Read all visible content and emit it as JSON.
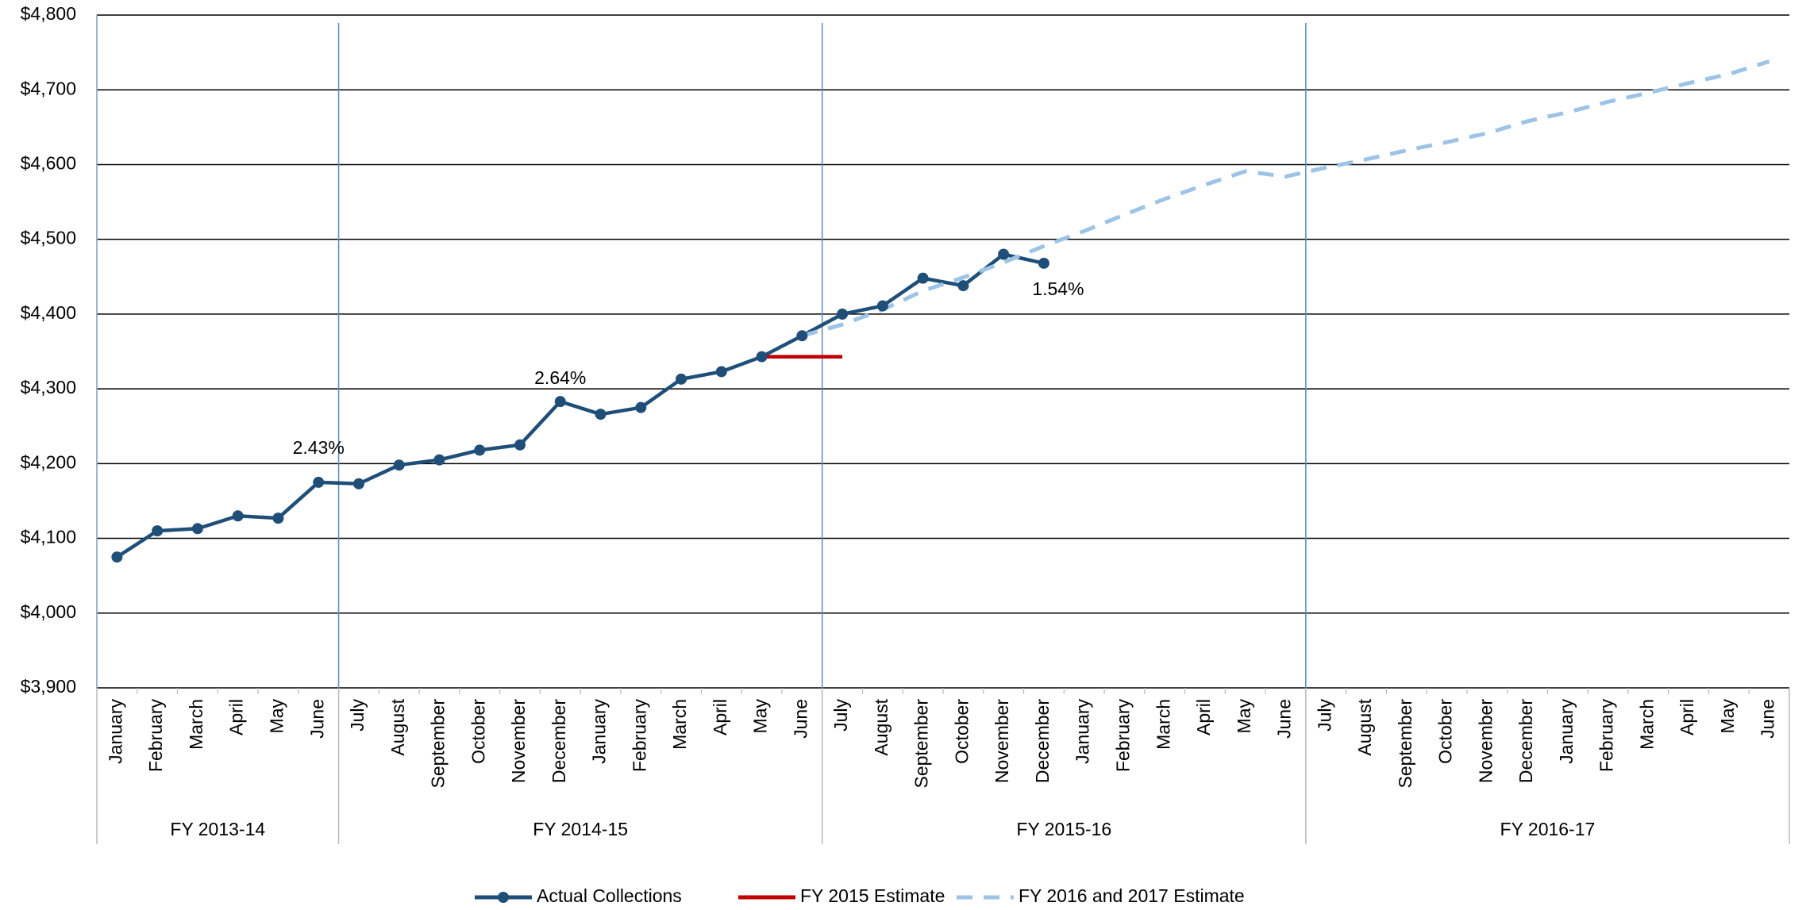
{
  "chart_data": {
    "type": "line",
    "categories": [
      "January",
      "February",
      "March",
      "April",
      "May",
      "June",
      "July",
      "August",
      "September",
      "October",
      "November",
      "December",
      "January",
      "February",
      "March",
      "April",
      "May",
      "June",
      "July",
      "August",
      "September",
      "October",
      "November",
      "December",
      "January",
      "February",
      "March",
      "April",
      "May",
      "June",
      "July",
      "August",
      "September",
      "October",
      "November",
      "December",
      "January",
      "February",
      "March",
      "April",
      "May",
      "June"
    ],
    "groups": [
      "FY 2013-14",
      "FY 2014-15",
      "FY 2015-16",
      "FY 2016-17"
    ],
    "series": [
      {
        "name": "Actual Collections",
        "color": "#1f4e79",
        "marker": true,
        "values": [
          4075,
          4110,
          4113,
          4130,
          4127,
          4175,
          4173,
          4198,
          4205,
          4218,
          4225,
          4283,
          4266,
          4275,
          4313,
          4323,
          4343,
          4371,
          4400,
          4411,
          4448,
          4438,
          4480,
          4468,
          null,
          null,
          null,
          null,
          null,
          null,
          null,
          null,
          null,
          null,
          null,
          null,
          null,
          null,
          null,
          null,
          null,
          null
        ]
      },
      {
        "name": "FY 2015 Estimate",
        "color": "#c00000",
        "marker": false,
        "values": [
          null,
          null,
          null,
          null,
          null,
          null,
          null,
          null,
          null,
          null,
          null,
          null,
          null,
          null,
          null,
          null,
          4343,
          4343,
          4343,
          null,
          null,
          null,
          null,
          null,
          null,
          null,
          null,
          null,
          null,
          null,
          null,
          null,
          null,
          null,
          null,
          null,
          null,
          null,
          null,
          null,
          null,
          null
        ]
      },
      {
        "name": "FY 2016 and 2017 Estimate",
        "color": "#9dc3e6",
        "marker": false,
        "dashed": true,
        "values": [
          null,
          null,
          null,
          null,
          null,
          null,
          null,
          null,
          null,
          null,
          null,
          null,
          null,
          null,
          null,
          null,
          null,
          4371,
          4386,
          4406,
          4431,
          4449,
          4469,
          4491,
          4511,
          4533,
          4554,
          4573,
          4591,
          4584,
          4596,
          4607,
          4619,
          4630,
          4642,
          4658,
          4670,
          4684,
          4696,
          4709,
          4721,
          4738
        ]
      }
    ],
    "annotations": [
      "2.43%",
      "2.64%",
      "1.54%"
    ],
    "ylim": [
      3900,
      4800
    ],
    "yticks": [
      {
        "value": 3900,
        "label": "$3,900"
      },
      {
        "value": 4000,
        "label": "$4,000"
      },
      {
        "value": 4100,
        "label": "$4,100"
      },
      {
        "value": 4200,
        "label": "$4,200"
      },
      {
        "value": 4300,
        "label": "$4,300"
      },
      {
        "value": 4400,
        "label": "$4,400"
      },
      {
        "value": 4500,
        "label": "$4,500"
      },
      {
        "value": 4600,
        "label": "$4,600"
      },
      {
        "value": 4700,
        "label": "$4,700"
      },
      {
        "value": 4800,
        "label": "$4,800"
      }
    ],
    "grid": true,
    "legend": "bottom"
  }
}
